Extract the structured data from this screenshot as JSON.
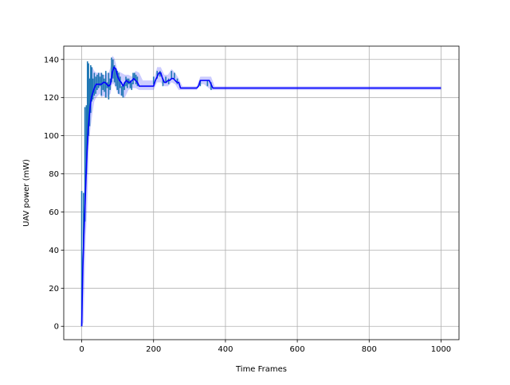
{
  "chart_data": {
    "type": "line",
    "title": "",
    "xlabel": "Time Frames",
    "ylabel": "UAV power (mW)",
    "xlim": [
      -50,
      1050
    ],
    "ylim": [
      -7,
      147
    ],
    "x_ticks": [
      0,
      200,
      400,
      600,
      800,
      1000
    ],
    "y_ticks": [
      0,
      20,
      40,
      60,
      80,
      100,
      120,
      140
    ],
    "x_tick_labels": [
      "0",
      "200",
      "400",
      "600",
      "800",
      "1000"
    ],
    "y_tick_labels": [
      "0",
      "20",
      "40",
      "60",
      "80",
      "100",
      "120",
      "140"
    ],
    "grid": true,
    "legend": false,
    "colors": {
      "samples": "#1f77b4",
      "mean": "#0000ff",
      "band": "#0000ff",
      "grid": "#b0b0b0"
    },
    "series": [
      {
        "kind": "samples",
        "segments": [
          [
            0,
            0,
            71
          ],
          [
            5,
            40,
            70
          ],
          [
            9,
            55,
            115
          ],
          [
            13,
            80,
            116
          ],
          [
            16,
            95,
            139
          ],
          [
            19,
            100,
            138
          ],
          [
            22,
            105,
            130
          ],
          [
            25,
            112,
            137
          ],
          [
            28,
            118,
            136
          ],
          [
            31,
            119,
            130
          ],
          [
            35,
            121,
            133
          ],
          [
            39,
            122,
            131
          ],
          [
            43,
            124,
            132
          ],
          [
            47,
            125,
            133
          ],
          [
            51,
            126,
            131
          ],
          [
            55,
            121,
            133
          ],
          [
            59,
            124,
            132
          ],
          [
            63,
            123,
            130
          ],
          [
            67,
            120,
            134
          ],
          [
            71,
            125,
            128
          ],
          [
            75,
            119,
            133
          ],
          [
            79,
            124,
            130
          ],
          [
            83,
            128,
            141
          ],
          [
            87,
            130,
            140
          ],
          [
            91,
            128,
            137
          ],
          [
            95,
            126,
            135
          ],
          [
            99,
            124,
            134
          ],
          [
            103,
            122,
            133
          ],
          [
            107,
            125,
            131
          ],
          [
            111,
            121,
            126
          ],
          [
            115,
            120,
            126
          ],
          [
            119,
            124,
            128
          ],
          [
            123,
            126,
            131
          ],
          [
            127,
            125,
            130
          ],
          [
            131,
            127,
            130
          ],
          [
            135,
            125,
            129
          ],
          [
            139,
            124,
            128
          ],
          [
            143,
            127,
            133
          ],
          [
            147,
            129,
            133
          ],
          [
            151,
            127,
            132
          ],
          [
            155,
            126,
            131
          ],
          [
            200,
            127,
            131
          ],
          [
            210,
            130,
            134
          ],
          [
            218,
            131,
            134
          ],
          [
            226,
            126,
            130
          ],
          [
            234,
            128,
            131
          ],
          [
            242,
            127,
            130
          ],
          [
            250,
            130,
            134
          ],
          [
            258,
            130,
            133
          ],
          [
            266,
            127,
            130
          ],
          [
            330,
            126,
            129
          ],
          [
            350,
            126,
            129
          ],
          [
            360,
            124,
            128
          ]
        ]
      },
      {
        "kind": "band",
        "x": [
          0,
          5,
          10,
          15,
          20,
          25,
          30,
          35,
          40,
          45,
          50,
          55,
          60,
          65,
          70,
          75,
          80,
          85,
          90,
          95,
          100,
          110,
          120,
          130,
          140,
          150,
          160,
          170,
          180,
          190,
          200,
          210,
          220,
          230,
          240,
          250,
          260,
          270,
          280,
          300,
          320,
          330,
          340,
          360,
          370,
          380,
          1000
        ],
        "lower": [
          0,
          2,
          40,
          62,
          95,
          105,
          112,
          118,
          120,
          121,
          122,
          120,
          121,
          120,
          120,
          121,
          122,
          127,
          127,
          125,
          122,
          121,
          120,
          124,
          125,
          125,
          124,
          124,
          124,
          124,
          124,
          128,
          128,
          126,
          126,
          128,
          127,
          124,
          124,
          124,
          124,
          127,
          127,
          124,
          124,
          124,
          124
        ],
        "upper": [
          2,
          35,
          95,
          112,
          128,
          133,
          136,
          134,
          133,
          133,
          133,
          133,
          132,
          132,
          133,
          133,
          136,
          142,
          141,
          138,
          134,
          133,
          132,
          132,
          131,
          134,
          133,
          129,
          129,
          129,
          129,
          136,
          136,
          132,
          132,
          135,
          133,
          130,
          126,
          126,
          126,
          131,
          131,
          131,
          126,
          126,
          126
        ]
      },
      {
        "kind": "mean",
        "x": [
          0,
          3,
          6,
          9,
          12,
          15,
          18,
          21,
          24,
          27,
          30,
          35,
          40,
          45,
          50,
          55,
          60,
          65,
          70,
          75,
          80,
          85,
          90,
          95,
          100,
          105,
          110,
          115,
          120,
          125,
          130,
          135,
          140,
          145,
          150,
          155,
          160,
          180,
          190,
          200,
          205,
          210,
          215,
          220,
          225,
          230,
          235,
          240,
          245,
          250,
          255,
          260,
          265,
          270,
          275,
          280,
          300,
          320,
          325,
          330,
          340,
          355,
          360,
          365,
          370,
          1000
        ],
        "y": [
          0,
          30,
          48,
          62,
          78,
          92,
          103,
          110,
          116,
          120,
          122,
          125,
          127,
          127,
          127,
          127,
          128,
          128,
          127,
          126,
          127,
          133,
          136,
          135,
          131,
          129,
          128,
          126,
          128,
          129,
          128,
          128,
          129,
          130,
          129,
          128,
          126,
          126,
          126,
          126,
          129,
          131,
          133,
          133,
          130,
          128,
          128,
          129,
          129,
          130,
          130,
          129,
          128,
          128,
          125,
          125,
          125,
          125,
          126,
          129,
          129,
          129,
          127,
          125,
          125,
          125
        ]
      }
    ]
  }
}
